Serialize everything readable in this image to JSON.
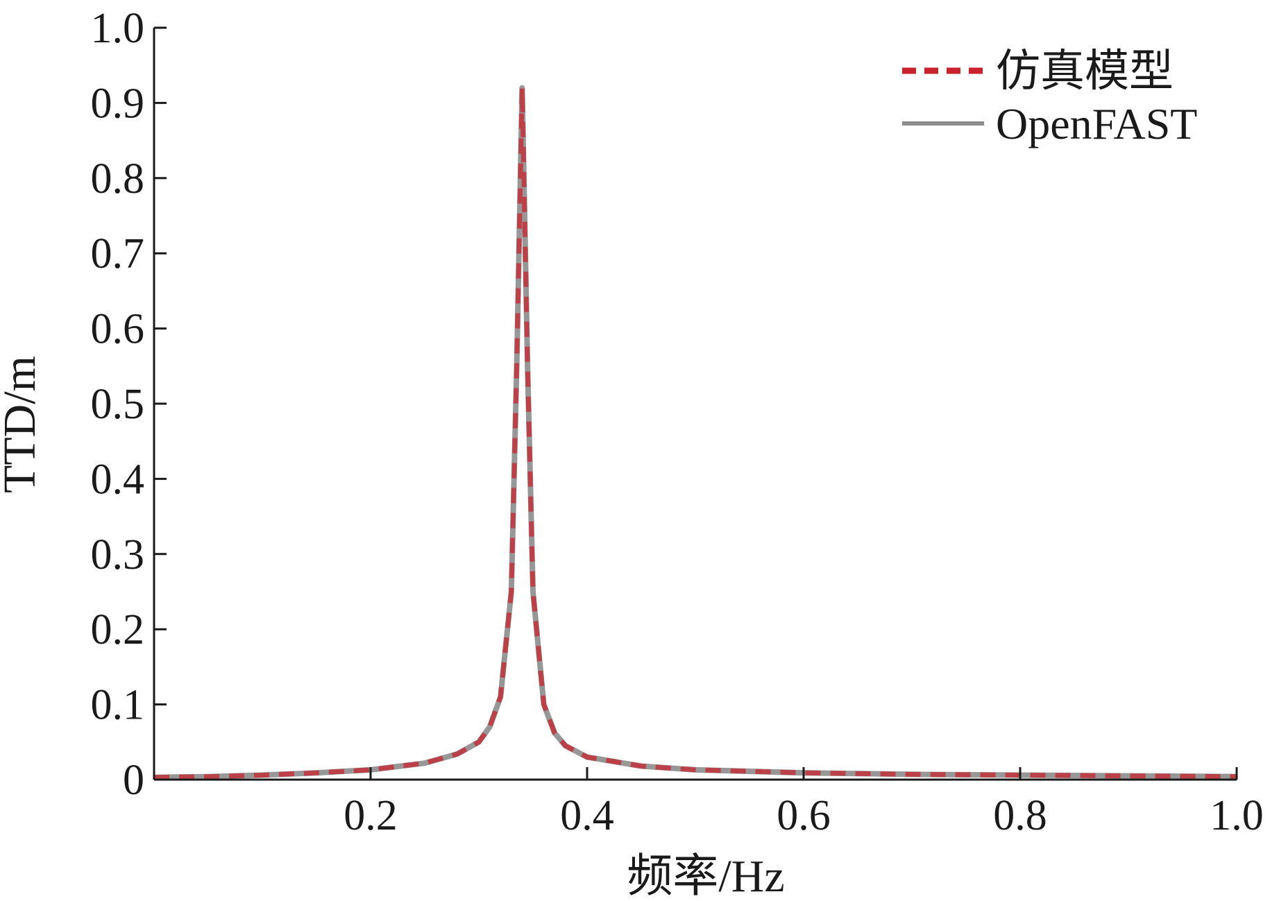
{
  "chart_data": {
    "type": "line",
    "title": "",
    "xlabel": "频率/Hz",
    "ylabel": "TTD/m",
    "xlim": [
      0.0,
      1.0
    ],
    "ylim": [
      0.0,
      1.0
    ],
    "xticks": [
      0.2,
      0.4,
      0.6,
      0.8,
      1.0
    ],
    "xtick_labels": [
      "0.2",
      "0.4",
      "0.6",
      "0.8",
      "1.0"
    ],
    "yticks": [
      0,
      0.1,
      0.2,
      0.3,
      0.4,
      0.5,
      0.6,
      0.7,
      0.8,
      0.9,
      1.0
    ],
    "ytick_labels": [
      "0",
      "0.1",
      "0.2",
      "0.3",
      "0.4",
      "0.5",
      "0.6",
      "0.7",
      "0.8",
      "0.9",
      "1.0"
    ],
    "grid": false,
    "legend_position": "top-right",
    "x": [
      0.0,
      0.05,
      0.1,
      0.15,
      0.2,
      0.25,
      0.28,
      0.3,
      0.31,
      0.32,
      0.33,
      0.335,
      0.34,
      0.345,
      0.35,
      0.36,
      0.37,
      0.38,
      0.4,
      0.45,
      0.5,
      0.6,
      0.7,
      0.8,
      0.9,
      1.0
    ],
    "series": [
      {
        "name": "仿真模型",
        "color": "#c8232c",
        "style": "dashed",
        "values": [
          0.003,
          0.004,
          0.006,
          0.009,
          0.013,
          0.022,
          0.034,
          0.05,
          0.07,
          0.11,
          0.25,
          0.55,
          0.92,
          0.55,
          0.25,
          0.1,
          0.062,
          0.045,
          0.03,
          0.018,
          0.013,
          0.009,
          0.007,
          0.006,
          0.005,
          0.004
        ]
      },
      {
        "name": "OpenFAST",
        "color": "#8c8c8c",
        "style": "solid",
        "values": [
          0.003,
          0.004,
          0.006,
          0.009,
          0.013,
          0.022,
          0.034,
          0.05,
          0.07,
          0.11,
          0.25,
          0.55,
          0.92,
          0.55,
          0.25,
          0.1,
          0.062,
          0.045,
          0.03,
          0.018,
          0.013,
          0.009,
          0.007,
          0.006,
          0.005,
          0.004
        ]
      }
    ]
  }
}
